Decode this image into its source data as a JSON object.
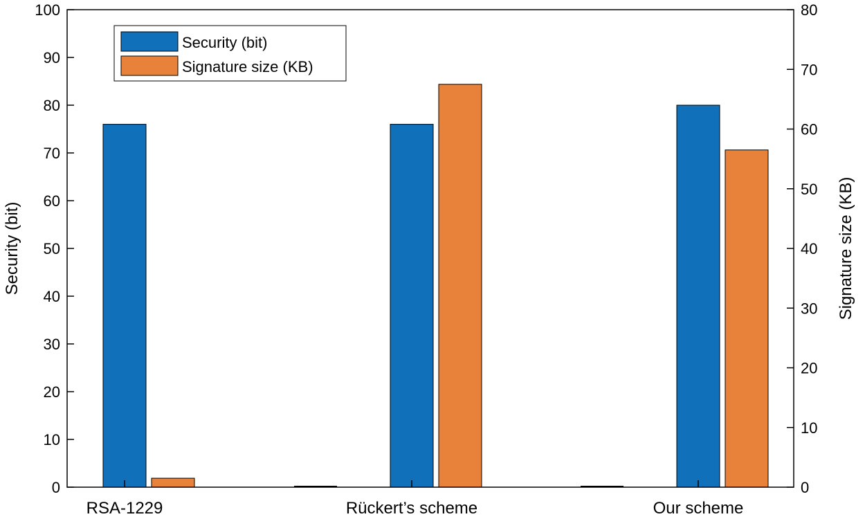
{
  "chart_data": {
    "type": "bar",
    "categories": [
      "RSA-1229",
      "Rückert’s scheme",
      "Our scheme"
    ],
    "series": [
      {
        "name": "Security (bit)",
        "axis": "left",
        "values": [
          76,
          76,
          80
        ],
        "color": "#1070BA"
      },
      {
        "name": "Signature size (KB)",
        "axis": "right",
        "values": [
          1.5,
          67.5,
          56.5
        ],
        "color": "#E8823A"
      }
    ],
    "left_axis": {
      "label": "Security (bit)",
      "ylim": [
        0,
        100
      ],
      "ticks": [
        0,
        10,
        20,
        30,
        40,
        50,
        60,
        70,
        80,
        90,
        100
      ]
    },
    "right_axis": {
      "label": "Signature size (KB)",
      "ylim": [
        0,
        80
      ],
      "ticks": [
        0,
        10,
        20,
        30,
        40,
        50,
        60,
        70,
        80
      ]
    },
    "xlabel": "",
    "grid": false,
    "legend": {
      "placement": "top-left",
      "entries": [
        "Security (bit)",
        "Signature size (KB)"
      ]
    }
  }
}
